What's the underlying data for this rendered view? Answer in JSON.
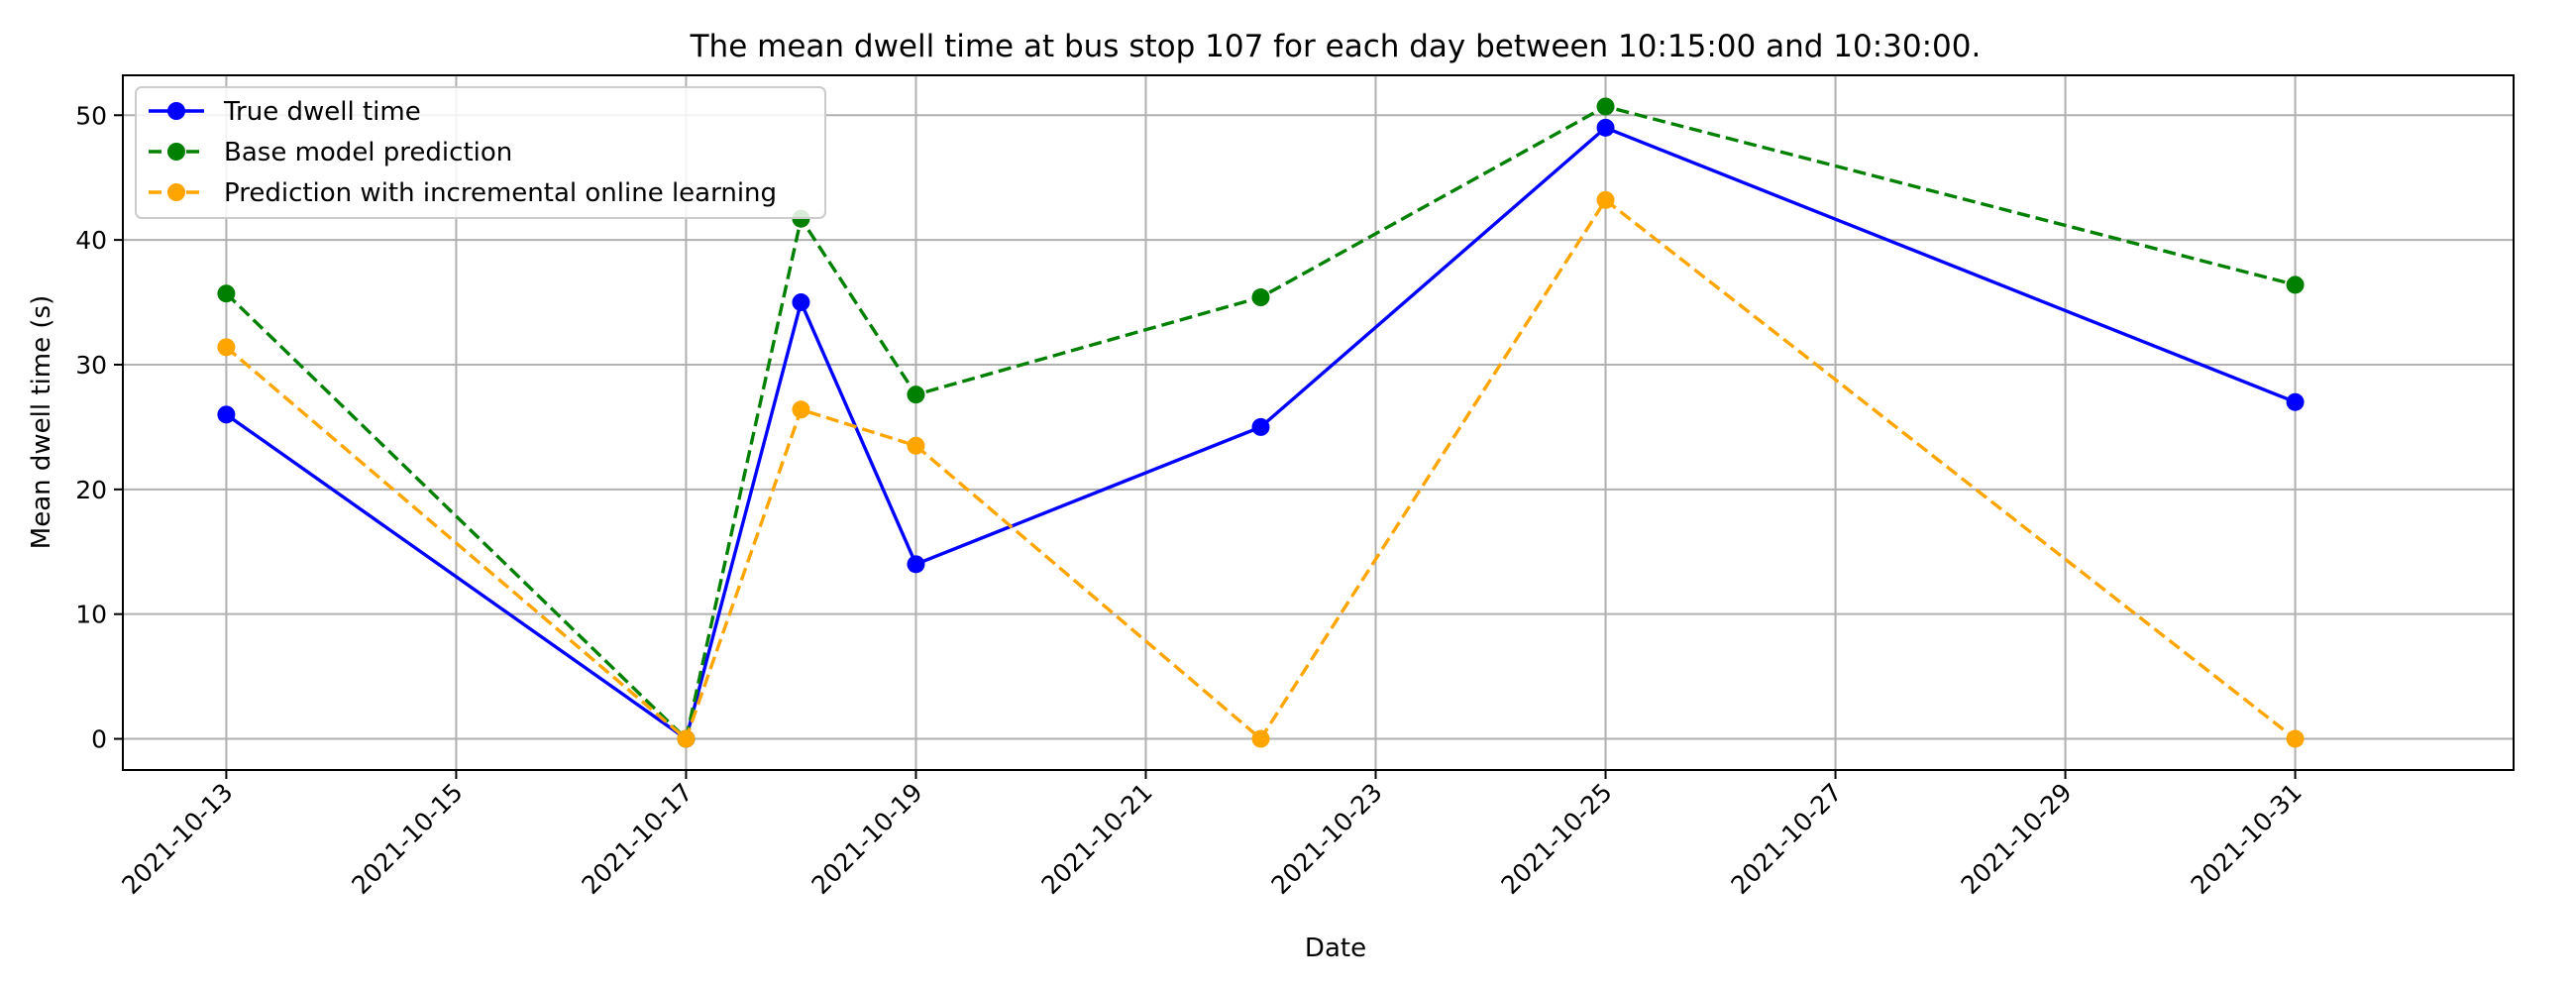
{
  "chart_data": {
    "type": "line",
    "title": "The mean dwell time at bus stop 107 for each day between 10:15:00 and 10:30:00.",
    "xlabel": "Date",
    "ylabel": "Mean dwell time (s)",
    "x": [
      "2021-10-13",
      "2021-10-17",
      "2021-10-18",
      "2021-10-19",
      "2021-10-22",
      "2021-10-25",
      "2021-10-31"
    ],
    "xticks": [
      "2021-10-13",
      "2021-10-15",
      "2021-10-17",
      "2021-10-19",
      "2021-10-21",
      "2021-10-23",
      "2021-10-25",
      "2021-10-27",
      "2021-10-29",
      "2021-10-31"
    ],
    "yticks": [
      0,
      10,
      20,
      30,
      40,
      50
    ],
    "xlim": [
      "2021-10-12.1",
      "2021-10-31.9"
    ],
    "ylim": [
      -2.5,
      53.2
    ],
    "grid": true,
    "legend_position": "upper-left",
    "series": [
      {
        "name": "True dwell time",
        "values": [
          26,
          0,
          35,
          14,
          25,
          49,
          27
        ],
        "color": "#0000ff",
        "linestyle": "solid",
        "marker": "circle"
      },
      {
        "name": "Base model prediction",
        "values": [
          35.7,
          0,
          41.7,
          27.6,
          35.4,
          50.7,
          36.4
        ],
        "color": "#008000",
        "linestyle": "dashed",
        "marker": "circle"
      },
      {
        "name": "Prediction with incremental online learning",
        "values": [
          31.4,
          0,
          26.4,
          23.5,
          0,
          43.2,
          0
        ],
        "color": "#ffa500",
        "linestyle": "dashed",
        "marker": "circle"
      }
    ]
  }
}
